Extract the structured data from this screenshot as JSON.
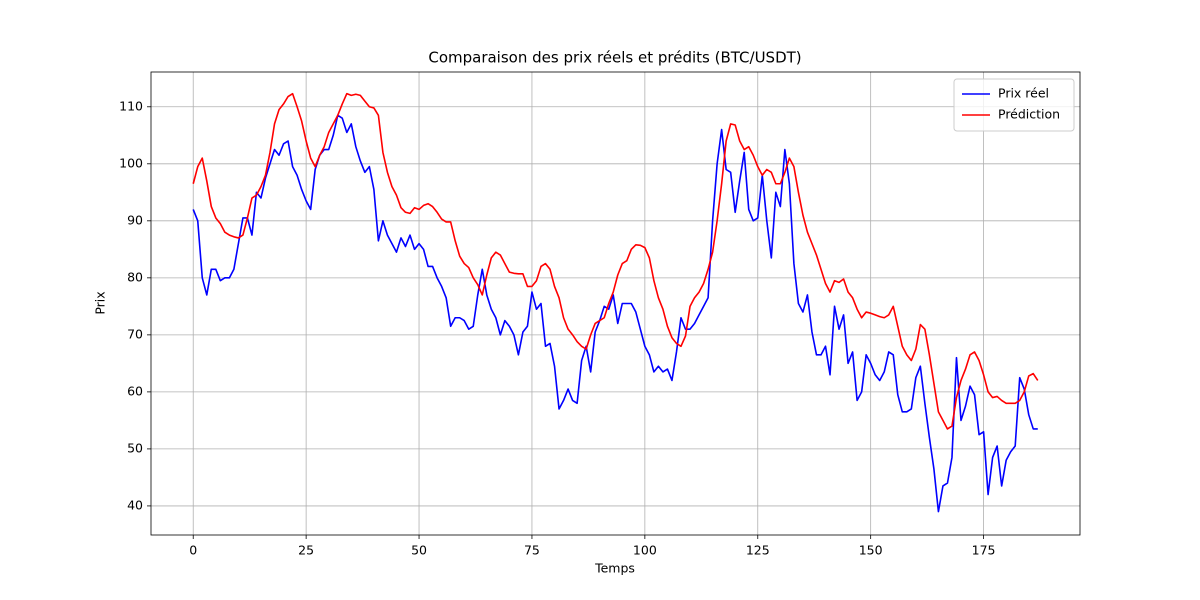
{
  "chart_data": {
    "type": "line",
    "title": "Comparaison des prix réels et prédits (BTC/USDT)",
    "xlabel": "Temps",
    "ylabel": "Prix",
    "x": [
      0,
      1,
      2,
      3,
      4,
      5,
      6,
      7,
      8,
      9,
      10,
      11,
      12,
      13,
      14,
      15,
      16,
      17,
      18,
      19,
      20,
      21,
      22,
      23,
      24,
      25,
      26,
      27,
      28,
      29,
      30,
      31,
      32,
      33,
      34,
      35,
      36,
      37,
      38,
      39,
      40,
      41,
      42,
      43,
      44,
      45,
      46,
      47,
      48,
      49,
      50,
      51,
      52,
      53,
      54,
      55,
      56,
      57,
      58,
      59,
      60,
      61,
      62,
      63,
      64,
      65,
      66,
      67,
      68,
      69,
      70,
      71,
      72,
      73,
      74,
      75,
      76,
      77,
      78,
      79,
      80,
      81,
      82,
      83,
      84,
      85,
      86,
      87,
      88,
      89,
      90,
      91,
      92,
      93,
      94,
      95,
      96,
      97,
      98,
      99,
      100,
      101,
      102,
      103,
      104,
      105,
      106,
      107,
      108,
      109,
      110,
      111,
      112,
      113,
      114,
      115,
      116,
      117,
      118,
      119,
      120,
      121,
      122,
      123,
      124,
      125,
      126,
      127,
      128,
      129,
      130,
      131,
      132,
      133,
      134,
      135,
      136,
      137,
      138,
      139,
      140,
      141,
      142,
      143,
      144,
      145,
      146,
      147,
      148,
      149,
      150,
      151,
      152,
      153,
      154,
      155,
      156,
      157,
      158,
      159,
      160,
      161,
      162,
      163,
      164,
      165,
      166,
      167,
      168,
      169,
      170,
      171,
      172,
      173,
      174,
      175,
      176,
      177,
      178,
      179,
      180,
      181,
      182,
      183,
      184,
      185,
      186,
      187
    ],
    "series": [
      {
        "name": "Prix réel",
        "color": "#0000ff",
        "values": [
          92,
          90,
          80,
          77,
          81.5,
          81.5,
          79.5,
          80,
          80,
          81.5,
          86,
          90.5,
          90.5,
          87.5,
          95,
          94,
          97.5,
          100,
          102.5,
          101.5,
          103.5,
          104,
          99.5,
          98,
          95.5,
          93.5,
          92,
          99,
          101.5,
          102.5,
          102.5,
          105,
          108.5,
          108,
          105.5,
          107,
          103,
          100.5,
          98.5,
          99.5,
          95.5,
          86.5,
          90,
          87.5,
          86,
          84.5,
          87,
          85.5,
          87.5,
          85,
          86,
          85,
          82,
          82,
          80,
          78.5,
          76.5,
          71.5,
          73,
          73,
          72.5,
          71,
          71.5,
          77,
          81.5,
          77,
          74.5,
          73,
          70,
          72.5,
          71.5,
          70,
          66.5,
          70.5,
          71.5,
          77.5,
          74.5,
          75.5,
          68,
          68.5,
          64.5,
          57,
          58.5,
          60.5,
          58.5,
          58,
          65.5,
          68,
          63.5,
          70.5,
          72.5,
          75,
          74.5,
          77,
          72,
          75.5,
          75.5,
          75.5,
          74,
          71,
          68,
          66.5,
          63.5,
          64.5,
          63.5,
          64,
          62,
          67,
          73,
          71,
          71,
          72,
          73.5,
          75,
          76.5,
          90,
          100,
          106,
          99,
          98.5,
          91.5,
          97,
          102,
          92,
          90,
          90.5,
          98,
          90,
          83.5,
          95,
          92.5,
          102.5,
          96.5,
          82.5,
          75.5,
          74,
          77,
          70.5,
          66.5,
          66.5,
          68,
          63,
          75,
          71,
          73.5,
          65,
          67,
          58.5,
          60,
          66.5,
          65,
          63,
          62,
          63.5,
          67,
          66.5,
          59.5,
          56.5,
          56.5,
          57,
          62.5,
          64.5,
          58,
          52,
          46.5,
          39,
          43.5,
          44,
          48.5,
          66,
          55,
          57.5,
          61,
          59.5,
          52.5,
          53,
          42,
          48.5,
          50.5,
          43.5,
          48,
          49.5,
          50.5,
          62.5,
          60.5,
          56,
          53.5,
          53.5
        ]
      },
      {
        "name": "Prédiction",
        "color": "#ff0000",
        "values": [
          96.5,
          99.5,
          101,
          97,
          92.5,
          90.5,
          89.5,
          88,
          87.5,
          87.2,
          87,
          87.5,
          90.5,
          94,
          94.5,
          96,
          98,
          102,
          107,
          109.5,
          110.5,
          111.8,
          112.3,
          110,
          107.5,
          104,
          101,
          99.5,
          101.5,
          103,
          105.5,
          107,
          108.5,
          110.5,
          112.3,
          112,
          112.2,
          112,
          111,
          110,
          109.8,
          108.5,
          102,
          98.5,
          96,
          94.5,
          92.3,
          91.5,
          91.3,
          92.3,
          92,
          92.7,
          93,
          92.5,
          91.5,
          90.3,
          89.8,
          89.8,
          86.5,
          83.8,
          82.5,
          81.8,
          80,
          78.8,
          77,
          80.5,
          83.5,
          84.5,
          84,
          82.5,
          81,
          80.8,
          80.7,
          80.7,
          78.5,
          78.5,
          79.5,
          82,
          82.5,
          81.5,
          78.5,
          76.5,
          73,
          71,
          70,
          68.8,
          68,
          67.5,
          70,
          72,
          72.5,
          73,
          75.5,
          77.5,
          80.5,
          82.5,
          83,
          85,
          85.8,
          85.7,
          85.3,
          83.5,
          79.5,
          76.5,
          74.5,
          71.5,
          69.5,
          68.5,
          68,
          69.8,
          75,
          76.5,
          77.5,
          79,
          81.5,
          84.5,
          90,
          96.5,
          104,
          107,
          106.8,
          104,
          102.5,
          103,
          101.5,
          99.5,
          98,
          99,
          98.5,
          96.5,
          96.5,
          98.5,
          101,
          99.5,
          95,
          91,
          88,
          86,
          84,
          81.5,
          79,
          77.5,
          79.5,
          79.2,
          79.8,
          77.5,
          76.5,
          74.5,
          73,
          74,
          73.8,
          73.5,
          73.2,
          73,
          73.5,
          75,
          71.5,
          68,
          66.5,
          65.5,
          67.5,
          71.8,
          71,
          66.5,
          61.5,
          56.5,
          55,
          53.5,
          54,
          59,
          62,
          64,
          66.5,
          67,
          65.5,
          63,
          60,
          59,
          59.2,
          58.5,
          58,
          58,
          58,
          58.5,
          60,
          62.8,
          63.2,
          62
        ]
      }
    ],
    "xlim": [
      -9.35,
      196.35
    ],
    "ylim": [
      34.9,
      116.1
    ],
    "xticks": [
      0,
      25,
      50,
      75,
      100,
      125,
      150,
      175
    ],
    "yticks": [
      40,
      50,
      60,
      70,
      80,
      90,
      100,
      110
    ],
    "grid": true,
    "legend": "upper right"
  }
}
